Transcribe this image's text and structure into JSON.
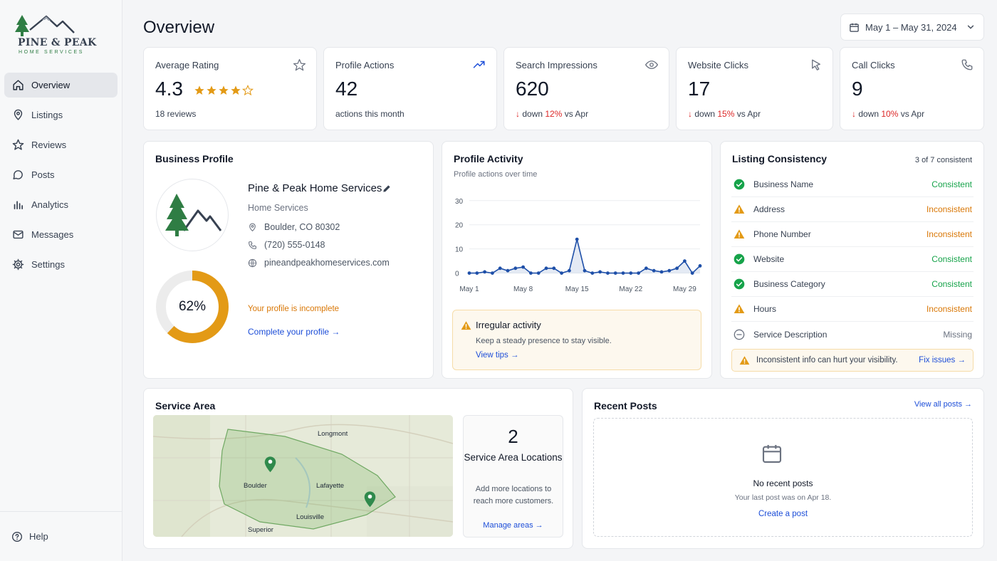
{
  "brand": {
    "name": "PINE & PEAK",
    "tagline": "HOME SERVICES"
  },
  "sidebar": {
    "items": [
      {
        "label": "Overview",
        "icon": "home-icon",
        "active": true
      },
      {
        "label": "Listings",
        "icon": "map-pin-icon"
      },
      {
        "label": "Reviews",
        "icon": "star-icon"
      },
      {
        "label": "Posts",
        "icon": "chat-bubble-icon"
      },
      {
        "label": "Analytics",
        "icon": "bar-chart-icon"
      },
      {
        "label": "Messages",
        "icon": "mail-icon"
      },
      {
        "label": "Settings",
        "icon": "gear-icon"
      }
    ],
    "help": "Help"
  },
  "header": {
    "title": "Overview",
    "date_range": "May 1 – May 31, 2024"
  },
  "kpis": {
    "rating": {
      "label": "Average Rating",
      "value": "4.3",
      "stars": 4,
      "sub": "18 reviews"
    },
    "actions": {
      "label": "Profile Actions",
      "value": "42",
      "sub": "actions this month"
    },
    "impressions": {
      "label": "Search Impressions",
      "value": "620",
      "prefix": "down ",
      "pct": "12%",
      "suffix": " vs Apr"
    },
    "clicks": {
      "label": "Website Clicks",
      "value": "17",
      "prefix": "down ",
      "pct": "15%",
      "suffix": " vs Apr"
    },
    "calls": {
      "label": "Call Clicks",
      "value": "9",
      "prefix": "down ",
      "pct": "10%",
      "suffix": " vs Apr"
    }
  },
  "business_profile": {
    "title": "Business Profile",
    "name": "Pine & Peak Home Services",
    "category": "Home Services",
    "location": "Boulder, CO 80302",
    "phone": "(720) 555-0148",
    "website": "pineandpeakhomeservices.com",
    "completion": 62,
    "completion_label": "62%",
    "incomplete_text": "Your profile is incomplete",
    "complete_link": "Complete your profile →"
  },
  "profile_activity": {
    "title": "Profile Activity",
    "subtitle": "Profile actions over time",
    "alert": {
      "title": "Irregular activity",
      "text": "Keep a steady presence to stay visible.",
      "link": "View tips →"
    }
  },
  "chart_data": {
    "type": "line",
    "x": [
      1,
      2,
      3,
      4,
      5,
      6,
      7,
      8,
      9,
      10,
      11,
      12,
      13,
      14,
      15,
      16,
      17,
      18,
      19,
      20,
      21,
      22,
      23,
      24,
      25,
      26,
      27,
      28,
      29,
      30,
      31
    ],
    "xticks": [
      {
        "x": 1,
        "label": "May 1"
      },
      {
        "x": 8,
        "label": "May 8"
      },
      {
        "x": 15,
        "label": "May 15"
      },
      {
        "x": 22,
        "label": "May 22"
      },
      {
        "x": 29,
        "label": "May 29"
      }
    ],
    "yticks": [
      0,
      10,
      20,
      30
    ],
    "ylim": [
      -1,
      32
    ],
    "xlim": [
      1,
      31
    ],
    "series": [
      {
        "values": [
          0,
          0,
          0.5,
          0,
          2,
          1,
          2,
          2.5,
          0,
          0,
          2,
          2,
          0,
          1,
          14,
          1,
          0,
          0.5,
          0,
          0,
          0,
          0,
          0,
          2,
          1,
          0.5,
          1,
          2,
          5,
          0,
          3
        ]
      }
    ],
    "grid": true,
    "color": "#1e4fa8"
  },
  "listing_consistency": {
    "title": "Listing Consistency",
    "count": "3 of 7 consistent",
    "rows": [
      {
        "name": "Business Name",
        "status": "Consistent",
        "kind": "consistent"
      },
      {
        "name": "Address",
        "status": "Inconsistent",
        "kind": "inconsistent"
      },
      {
        "name": "Phone Number",
        "status": "Inconsistent",
        "kind": "inconsistent"
      },
      {
        "name": "Website",
        "status": "Consistent",
        "kind": "consistent"
      },
      {
        "name": "Business Category",
        "status": "Consistent",
        "kind": "consistent"
      },
      {
        "name": "Hours",
        "status": "Inconsistent",
        "kind": "inconsistent"
      },
      {
        "name": "Service Description",
        "status": "Missing",
        "kind": "missing"
      }
    ],
    "alert": {
      "text": "Inconsistent info can hurt your visibility.",
      "link": "Fix issues →"
    }
  },
  "service_area": {
    "title": "Service Area",
    "map_labels": {
      "longmont": "Longmont",
      "boulder": "Boulder",
      "lafayette": "Lafayette",
      "louisville": "Louisville",
      "superior": "Superior"
    },
    "count": "2",
    "count_label": "Service Area Locations",
    "text": "Add more locations to reach more customers.",
    "link": "Manage areas →"
  },
  "recent_posts": {
    "title": "Recent Posts",
    "view_all": "View all posts →",
    "empty_title": "No recent posts",
    "empty_text": "Your last post was on Apr 18.",
    "create_link": "Create a post"
  },
  "colors": {
    "accent": "#1d4ed8",
    "star": "#e39a16",
    "green": "#16a34a",
    "warning": "#d97706",
    "danger": "#dc2626",
    "line": "#1e4fa8"
  }
}
